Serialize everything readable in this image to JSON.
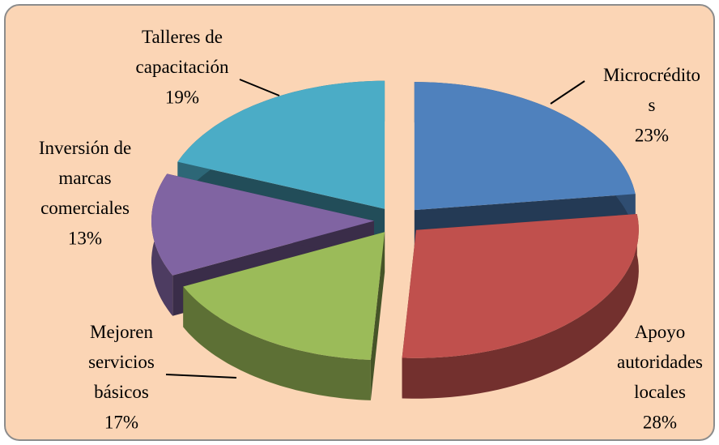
{
  "chart_data": {
    "type": "pie",
    "categories": [
      "Microcréditos",
      "Apoyo autoridades locales",
      "Mejoren servicios básicos",
      "Inversión de marcas comerciales",
      "Talleres de capacitación"
    ],
    "values": [
      23,
      28,
      17,
      13,
      19
    ],
    "value_labels": [
      "23%",
      "28%",
      "17%",
      "13%",
      "19%"
    ],
    "colors": [
      "#4f81bd",
      "#c0504d",
      "#9bbb59",
      "#8064a2",
      "#4bacc6"
    ]
  }
}
